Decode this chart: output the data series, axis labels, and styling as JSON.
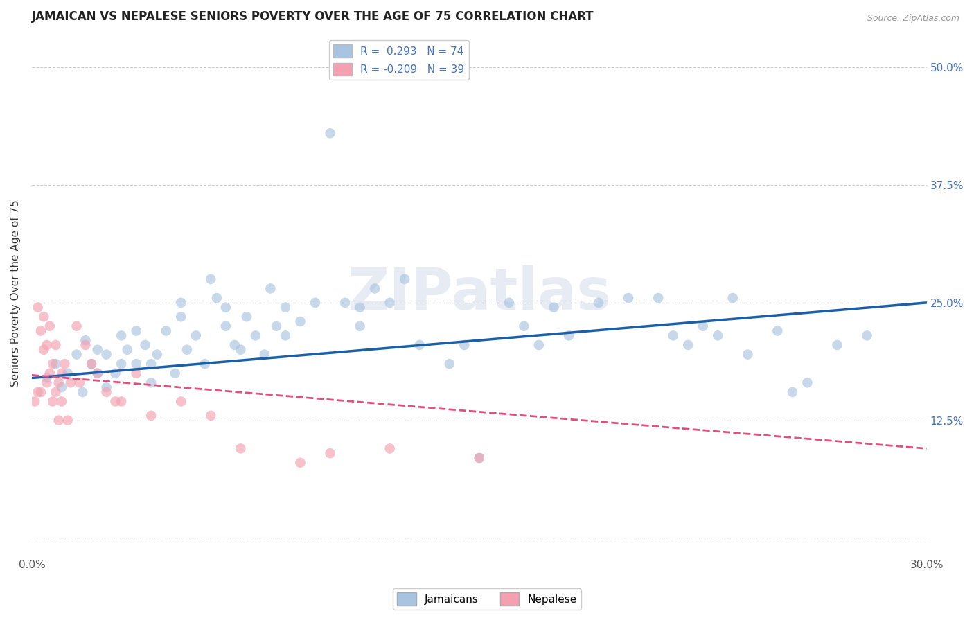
{
  "title": "JAMAICAN VS NEPALESE SENIORS POVERTY OVER THE AGE OF 75 CORRELATION CHART",
  "source": "Source: ZipAtlas.com",
  "ylabel": "Seniors Poverty Over the Age of 75",
  "x_min": 0.0,
  "x_max": 0.3,
  "y_min": -0.02,
  "y_max": 0.54,
  "x_ticks": [
    0.0,
    0.05,
    0.1,
    0.15,
    0.2,
    0.25,
    0.3
  ],
  "y_ticks": [
    0.0,
    0.125,
    0.25,
    0.375,
    0.5
  ],
  "y_tick_labels": [
    "",
    "12.5%",
    "25.0%",
    "37.5%",
    "50.0%"
  ],
  "jamaican_color": "#a8c4e0",
  "jamaican_line_color": "#1a5fa8",
  "nepalese_color": "#f4a0b0",
  "nepalese_line_color": "#e0507a",
  "dot_size": 110,
  "dot_alpha": 0.65,
  "watermark": "ZIPatlas",
  "background_color": "#ffffff",
  "grid_color": "#cccccc",
  "jamaican_x": [
    0.005,
    0.008,
    0.01,
    0.012,
    0.015,
    0.017,
    0.018,
    0.02,
    0.022,
    0.022,
    0.025,
    0.025,
    0.028,
    0.03,
    0.03,
    0.032,
    0.035,
    0.035,
    0.038,
    0.04,
    0.04,
    0.042,
    0.045,
    0.048,
    0.05,
    0.05,
    0.052,
    0.055,
    0.058,
    0.06,
    0.062,
    0.065,
    0.065,
    0.068,
    0.07,
    0.072,
    0.075,
    0.078,
    0.08,
    0.082,
    0.085,
    0.085,
    0.09,
    0.095,
    0.1,
    0.105,
    0.11,
    0.11,
    0.115,
    0.12,
    0.125,
    0.13,
    0.14,
    0.145,
    0.15,
    0.16,
    0.165,
    0.17,
    0.175,
    0.18,
    0.19,
    0.2,
    0.21,
    0.215,
    0.22,
    0.225,
    0.23,
    0.235,
    0.24,
    0.25,
    0.255,
    0.26,
    0.27,
    0.28
  ],
  "jamaican_y": [
    0.17,
    0.185,
    0.16,
    0.175,
    0.195,
    0.155,
    0.21,
    0.185,
    0.175,
    0.2,
    0.16,
    0.195,
    0.175,
    0.185,
    0.215,
    0.2,
    0.185,
    0.22,
    0.205,
    0.185,
    0.165,
    0.195,
    0.22,
    0.175,
    0.25,
    0.235,
    0.2,
    0.215,
    0.185,
    0.275,
    0.255,
    0.245,
    0.225,
    0.205,
    0.2,
    0.235,
    0.215,
    0.195,
    0.265,
    0.225,
    0.245,
    0.215,
    0.23,
    0.25,
    0.43,
    0.25,
    0.245,
    0.225,
    0.265,
    0.25,
    0.275,
    0.205,
    0.185,
    0.205,
    0.085,
    0.25,
    0.225,
    0.205,
    0.245,
    0.215,
    0.25,
    0.255,
    0.255,
    0.215,
    0.205,
    0.225,
    0.215,
    0.255,
    0.195,
    0.22,
    0.155,
    0.165,
    0.205,
    0.215
  ],
  "nepalese_x": [
    0.001,
    0.002,
    0.002,
    0.003,
    0.003,
    0.004,
    0.004,
    0.005,
    0.005,
    0.006,
    0.006,
    0.007,
    0.007,
    0.008,
    0.008,
    0.009,
    0.009,
    0.01,
    0.01,
    0.011,
    0.012,
    0.013,
    0.015,
    0.016,
    0.018,
    0.02,
    0.022,
    0.025,
    0.028,
    0.03,
    0.035,
    0.04,
    0.05,
    0.06,
    0.07,
    0.09,
    0.1,
    0.12,
    0.15
  ],
  "nepalese_y": [
    0.145,
    0.155,
    0.245,
    0.155,
    0.22,
    0.2,
    0.235,
    0.165,
    0.205,
    0.175,
    0.225,
    0.145,
    0.185,
    0.155,
    0.205,
    0.125,
    0.165,
    0.175,
    0.145,
    0.185,
    0.125,
    0.165,
    0.225,
    0.165,
    0.205,
    0.185,
    0.175,
    0.155,
    0.145,
    0.145,
    0.175,
    0.13,
    0.145,
    0.13,
    0.095,
    0.08,
    0.09,
    0.095,
    0.085
  ],
  "jamaican_line_start_x": 0.0,
  "jamaican_line_end_x": 0.3,
  "jamaican_line_start_y": 0.17,
  "jamaican_line_end_y": 0.25,
  "nepalese_line_start_x": 0.0,
  "nepalese_line_end_x": 0.3,
  "nepalese_line_start_y": 0.173,
  "nepalese_line_end_y": 0.095,
  "legend_jamaican_label": "R =  0.293   N = 74",
  "legend_nepalese_label": "R = -0.209   N = 39",
  "bottom_legend_jamaican": "Jamaicans",
  "bottom_legend_nepalese": "Nepalese"
}
